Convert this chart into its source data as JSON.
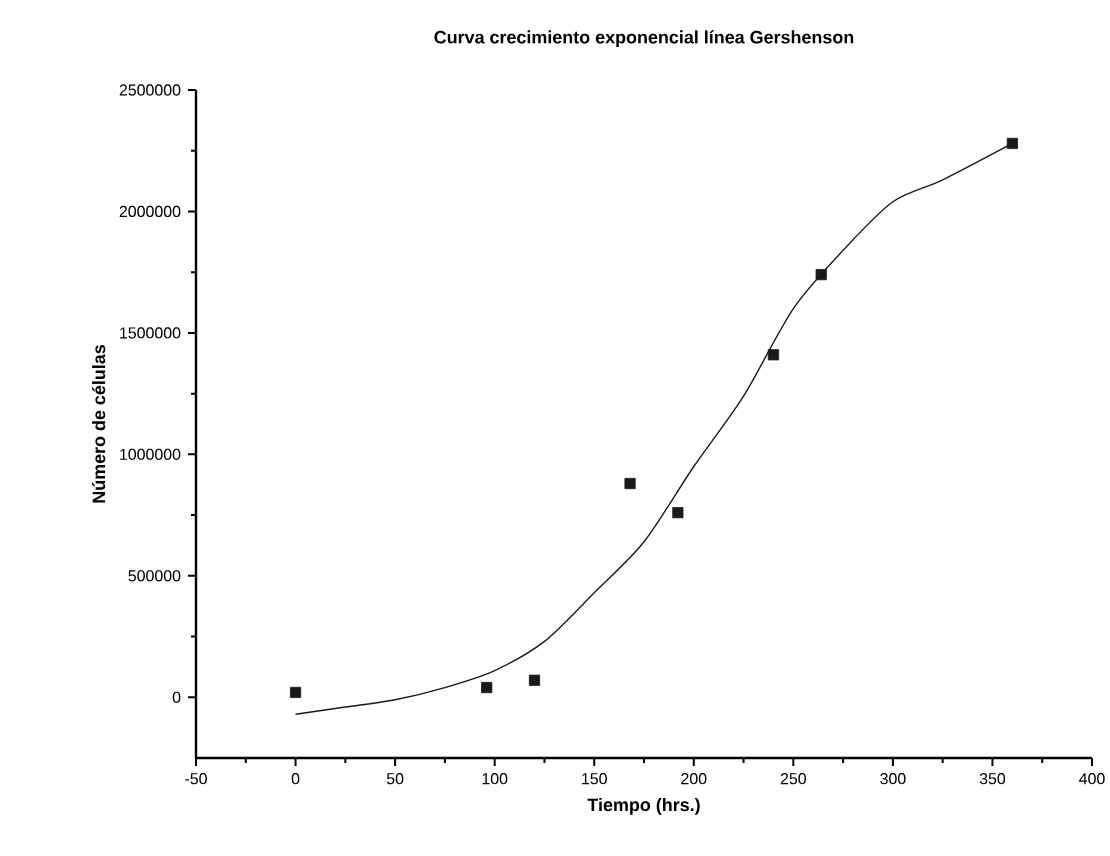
{
  "chart_data": {
    "type": "scatter",
    "title": "Curva crecimiento exponencial línea Gershenson",
    "xlabel": "Tiempo (hrs.)",
    "ylabel": "Número de células",
    "xlim": [
      -50,
      400
    ],
    "xticks": [
      -50,
      0,
      50,
      100,
      150,
      200,
      250,
      300,
      350,
      400
    ],
    "ylim": [
      -250000,
      2500000
    ],
    "yticks": [
      0,
      500000,
      1000000,
      1500000,
      2000000,
      2500000
    ],
    "grid": false,
    "marker": "square",
    "series": [
      {
        "color": "#1a1a1a",
        "x": [
          0,
          96,
          120,
          168,
          192,
          240,
          264,
          360
        ],
        "values": [
          20000,
          40000,
          70000,
          880000,
          760000,
          1410000,
          1740000,
          2280000
        ]
      },
      {
        "type": "line",
        "color": "#1a1a1a",
        "marker": "none",
        "line_style": "solid",
        "x": [
          0,
          25,
          50,
          75,
          100,
          125,
          150,
          175,
          200,
          225,
          250,
          275,
          300,
          325,
          360
        ],
        "values": [
          -70000,
          -40000,
          -10000,
          40000,
          110000,
          230000,
          430000,
          640000,
          950000,
          1240000,
          1600000,
          1840000,
          2040000,
          2130000,
          2280000
        ]
      }
    ]
  }
}
